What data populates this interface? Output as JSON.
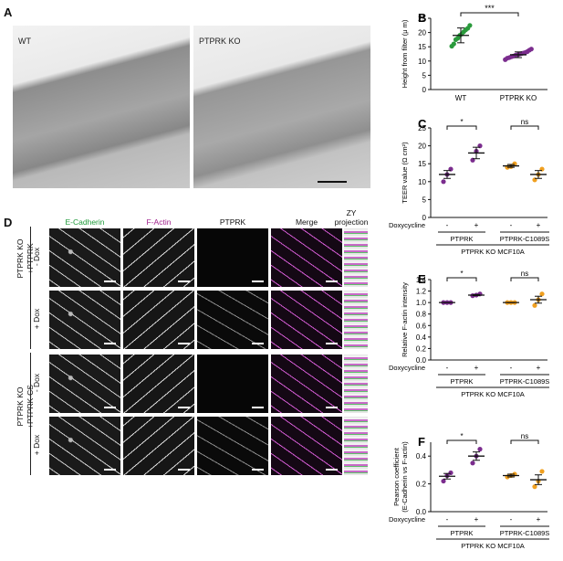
{
  "panels": {
    "A": {
      "letter": "A",
      "left_label": "WT",
      "right_label": "PTPRK KO"
    },
    "D": {
      "letter": "D",
      "columns": [
        "E-Cadherin",
        "F-Actin",
        "PTPRK",
        "Merge",
        "ZY\nprojection"
      ],
      "groups": [
        "PTPRK KO\n+PTPRK",
        "PTPRK KO\n+PTPRK-CS"
      ],
      "rows": [
        "- Dox",
        "+ Dox",
        "- Dox",
        "+ Dox"
      ]
    }
  },
  "chart_data": [
    {
      "panel": "B",
      "type": "scatter",
      "categories": [
        "WT",
        "PTPRK KO"
      ],
      "ylabel": "Height from filter (μ m)",
      "ylim": [
        0,
        25
      ],
      "yticks": [
        0,
        5,
        10,
        15,
        20,
        25
      ],
      "series": [
        {
          "values": [
            15.2,
            16.0,
            17.5,
            18.0,
            19.0,
            19.5,
            20.3,
            21.0,
            21.5,
            22.5
          ],
          "mean": 19.0,
          "sd": 2.6,
          "color": "#2a9a3c"
        },
        {
          "values": [
            10.5,
            11.0,
            11.2,
            11.5,
            11.7,
            12.0,
            12.2,
            12.4,
            12.6,
            12.8,
            13.0,
            13.3,
            13.8,
            14.2
          ],
          "mean": 12.2,
          "sd": 1.0,
          "color": "#7b2d8e"
        }
      ],
      "annotation": "***"
    },
    {
      "panel": "C",
      "type": "scatter",
      "ylabel": "TEER value (Ω cm²)",
      "ylim": [
        0,
        25
      ],
      "yticks": [
        0,
        5,
        10,
        15,
        20,
        25
      ],
      "xlabel": "Doxycycline",
      "dox_ticks": [
        "-",
        "+",
        "-",
        "+"
      ],
      "groups": [
        "PTPRK",
        "PTPRK-C1089S"
      ],
      "subtitle": "PTPRK KO MCF10A",
      "points": [
        {
          "values": [
            10.0,
            12.0,
            13.5
          ],
          "mean": 12.0,
          "sem": 1.1,
          "color": "#7b2d8e"
        },
        {
          "values": [
            16.0,
            18.5,
            20.0
          ],
          "mean": 18.0,
          "sem": 1.6,
          "color": "#7b2d8e"
        },
        {
          "values": [
            14.0,
            14.2,
            15.0
          ],
          "mean": 14.4,
          "sem": 0.4,
          "color": "#f0a020"
        },
        {
          "values": [
            10.5,
            12.0,
            13.5
          ],
          "mean": 12.0,
          "sem": 1.1,
          "color": "#f0a020"
        }
      ],
      "annotations": [
        "*",
        "ns"
      ]
    },
    {
      "panel": "E",
      "type": "scatter",
      "ylabel": "Relative F-actin intensity",
      "ylim": [
        0.0,
        1.4
      ],
      "yticks": [
        0.0,
        0.2,
        0.4,
        0.6,
        0.8,
        1.0,
        1.2,
        1.4
      ],
      "xlabel": "Doxycycline",
      "dox_ticks": [
        "-",
        "+",
        "-",
        "+"
      ],
      "groups": [
        "PTPRK",
        "PTPRK-C1089S"
      ],
      "subtitle": "PTPRK KO MCF10A",
      "points": [
        {
          "values": [
            1.0,
            1.0,
            1.0
          ],
          "mean": 1.0,
          "sem": 0.0,
          "color": "#7b2d8e"
        },
        {
          "values": [
            1.12,
            1.13,
            1.15
          ],
          "mean": 1.13,
          "sem": 0.01,
          "color": "#7b2d8e"
        },
        {
          "values": [
            1.0,
            1.0,
            1.0
          ],
          "mean": 1.0,
          "sem": 0.0,
          "color": "#f0a020"
        },
        {
          "values": [
            0.95,
            1.05,
            1.15
          ],
          "mean": 1.05,
          "sem": 0.06,
          "color": "#f0a020"
        }
      ],
      "annotations": [
        "*",
        "ns"
      ]
    },
    {
      "panel": "F",
      "type": "scatter",
      "ylabel": "Pearson coefficient\n(E-Cadherin vs F-actin)",
      "ylim": [
        0.0,
        0.5
      ],
      "yticks": [
        0.0,
        0.2,
        0.4
      ],
      "xlabel": "Doxycycline",
      "dox_ticks": [
        "-",
        "+",
        "-",
        "+"
      ],
      "groups": [
        "PTPRK",
        "PTPRK-C1089S"
      ],
      "subtitle": "PTPRK KO MCF10A",
      "points": [
        {
          "values": [
            0.22,
            0.26,
            0.28
          ],
          "mean": 0.255,
          "sem": 0.02,
          "color": "#7b2d8e"
        },
        {
          "values": [
            0.35,
            0.4,
            0.45
          ],
          "mean": 0.4,
          "sem": 0.03,
          "color": "#7b2d8e"
        },
        {
          "values": [
            0.25,
            0.26,
            0.27
          ],
          "mean": 0.26,
          "sem": 0.01,
          "color": "#f0a020"
        },
        {
          "values": [
            0.18,
            0.22,
            0.29
          ],
          "mean": 0.23,
          "sem": 0.035,
          "color": "#f0a020"
        }
      ],
      "annotations": [
        "*",
        "ns"
      ]
    }
  ]
}
